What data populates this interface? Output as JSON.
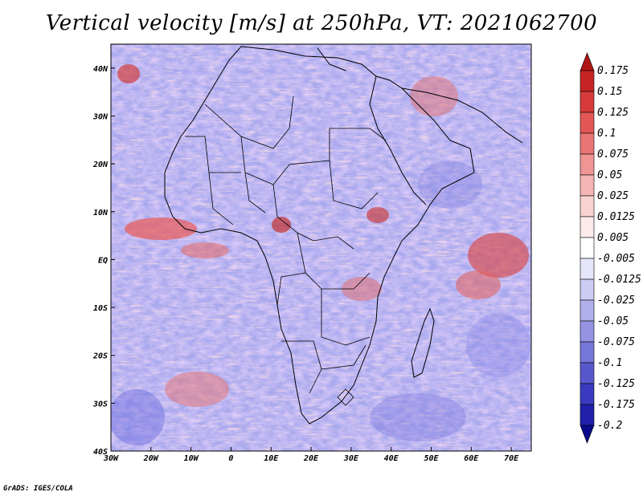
{
  "title": "Vertical velocity [m/s] at 250hPa, VT: 2021062700",
  "credit": "GrADS: IGES/COLA",
  "map": {
    "variable": "Vertical velocity",
    "units": "m/s",
    "level": "250hPa",
    "valid_time": "2021062700",
    "lon_range": [
      -30,
      75
    ],
    "lat_range": [
      -40,
      45
    ],
    "x_ticks": [
      "30W",
      "20W",
      "10W",
      "0",
      "10E",
      "20E",
      "30E",
      "40E",
      "50E",
      "60E",
      "70E"
    ],
    "x_tick_values": [
      -30,
      -20,
      -10,
      0,
      10,
      20,
      30,
      40,
      50,
      60,
      70
    ],
    "y_ticks": [
      "40N",
      "30N",
      "20N",
      "10N",
      "EQ",
      "10S",
      "20S",
      "30S",
      "40S"
    ],
    "y_tick_values": [
      40,
      30,
      20,
      10,
      0,
      -10,
      -20,
      -30,
      -40
    ]
  },
  "colorbar": {
    "labels": [
      "0.175",
      "0.15",
      "0.125",
      "0.1",
      "0.075",
      "0.05",
      "0.025",
      "0.0125",
      "0.005",
      "-0.005",
      "-0.0125",
      "-0.025",
      "-0.05",
      "-0.075",
      "-0.1",
      "-0.125",
      "-0.175",
      "-0.2"
    ],
    "colors": [
      "#b01515",
      "#c52424",
      "#d63a3a",
      "#e25656",
      "#ea7575",
      "#f09595",
      "#f5b5b5",
      "#f9d2d2",
      "#fcebeb",
      "#ffffff",
      "#e6e6fa",
      "#cbcbf3",
      "#b0b0ec",
      "#9494e3",
      "#7676d9",
      "#5858cd",
      "#3a3ac0",
      "#2020aa",
      "#0a0a8c"
    ]
  }
}
